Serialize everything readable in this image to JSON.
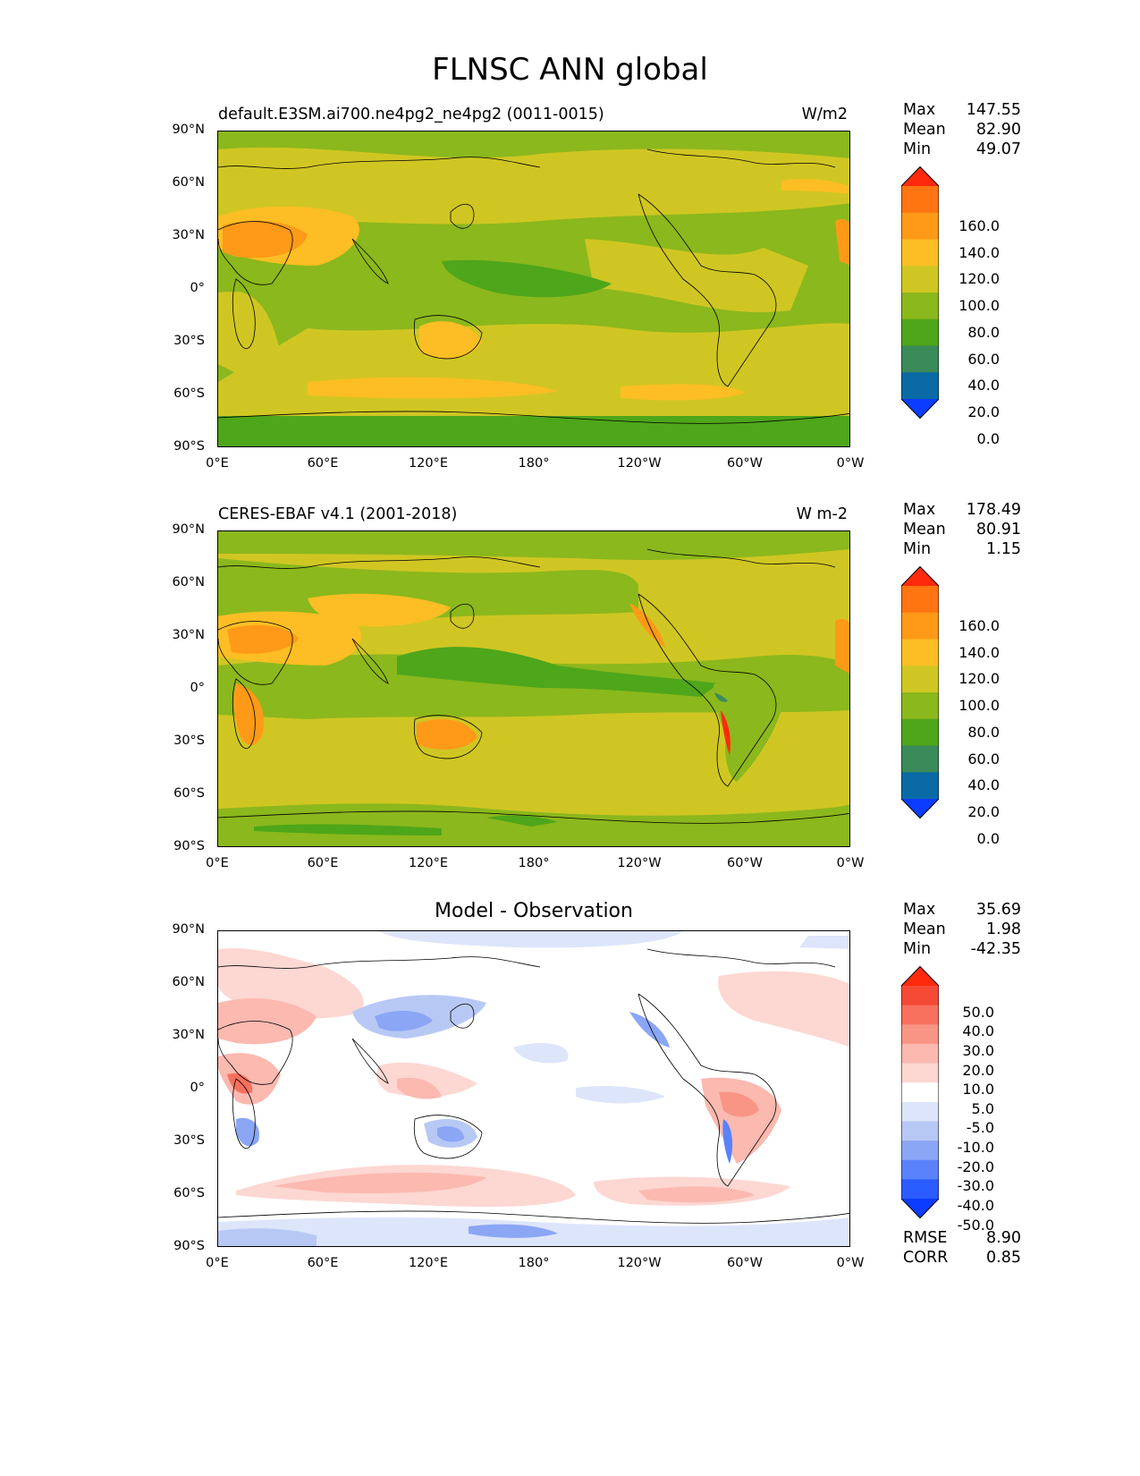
{
  "suptitle": "FLNSC ANN global",
  "panels": [
    {
      "title_left": "default.E3SM.ai700.ne4pg2_ne4pg2 (0011-0015)",
      "title_right": "W/m2",
      "stats": [
        {
          "k": "Max",
          "v": "147.55"
        },
        {
          "k": "Mean",
          "v": "82.90"
        },
        {
          "k": "Min",
          "v": "49.07"
        }
      ],
      "colorbar": {
        "colors": [
          "#0b3cff",
          "#0a6aa6",
          "#3a8a5a",
          "#4ea61a",
          "#8bb81c",
          "#d0c623",
          "#fcbe24",
          "#fe9a18",
          "#fe7511",
          "#ff2a0d"
        ],
        "labels": [
          "0.0",
          "20.0",
          "40.0",
          "60.0",
          "80.0",
          "100.0",
          "120.0",
          "140.0",
          "160.0"
        ]
      }
    },
    {
      "title_left": "CERES-EBAF v4.1 (2001-2018)",
      "title_right": "W m-2",
      "stats": [
        {
          "k": "Max",
          "v": "178.49"
        },
        {
          "k": "Mean",
          "v": "80.91"
        },
        {
          "k": "Min",
          "v": "1.15"
        }
      ],
      "colorbar": {
        "colors": [
          "#0b3cff",
          "#0a6aa6",
          "#3a8a5a",
          "#4ea61a",
          "#8bb81c",
          "#d0c623",
          "#fcbe24",
          "#fe9a18",
          "#fe7511",
          "#ff2a0d"
        ],
        "labels": [
          "0.0",
          "20.0",
          "40.0",
          "60.0",
          "80.0",
          "100.0",
          "120.0",
          "140.0",
          "160.0"
        ]
      }
    },
    {
      "title_center": "Model - Observation",
      "stats": [
        {
          "k": "Max",
          "v": "35.69"
        },
        {
          "k": "Mean",
          "v": "1.98"
        },
        {
          "k": "Min",
          "v": "-42.35"
        }
      ],
      "stats_bottom": [
        {
          "k": "RMSE",
          "v": "8.90"
        },
        {
          "k": "CORR",
          "v": "0.85"
        }
      ],
      "colorbar": {
        "colors": [
          "#0b3cff",
          "#2b5cff",
          "#5a82fb",
          "#8aa6f5",
          "#b8c8f5",
          "#dde5fa",
          "#ffffff",
          "#fdd7d2",
          "#fbb9b0",
          "#f99585",
          "#f7705e",
          "#f54a36",
          "#ff2a0d"
        ],
        "labels": [
          "-50.0",
          "-40.0",
          "-30.0",
          "-20.0",
          "-10.0",
          "-5.0",
          "5.0",
          "10.0",
          "20.0",
          "30.0",
          "40.0",
          "50.0"
        ]
      }
    }
  ],
  "lat_ticks": [
    "90°N",
    "60°N",
    "30°N",
    "0°",
    "30°S",
    "60°S",
    "90°S"
  ],
  "lon_ticks": [
    "0°E",
    "60°E",
    "120°E",
    "180°",
    "120°W",
    "60°W",
    "0°W"
  ]
}
